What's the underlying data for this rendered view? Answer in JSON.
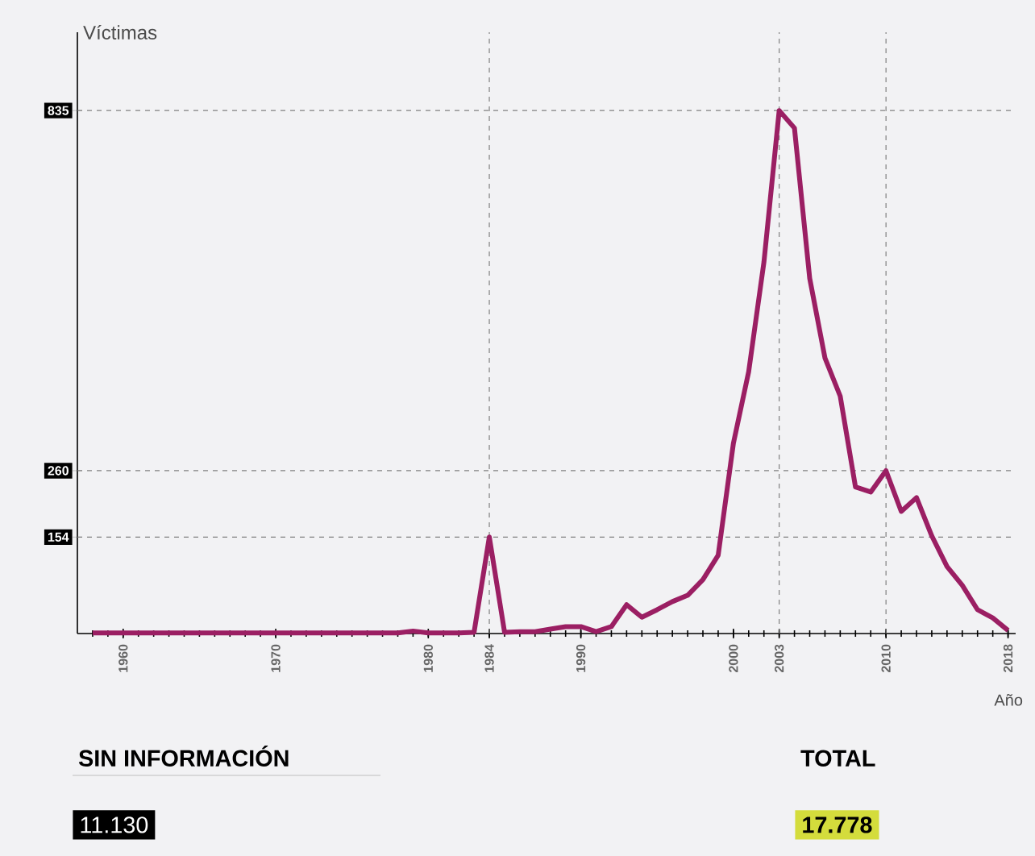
{
  "chart_data": {
    "type": "line",
    "xlabel": "Año",
    "ylabel": "Víctimas",
    "x": [
      1958,
      1959,
      1960,
      1961,
      1962,
      1963,
      1964,
      1965,
      1966,
      1967,
      1968,
      1969,
      1970,
      1971,
      1972,
      1973,
      1974,
      1975,
      1976,
      1977,
      1978,
      1979,
      1980,
      1981,
      1982,
      1983,
      1984,
      1985,
      1986,
      1987,
      1988,
      1989,
      1990,
      1991,
      1992,
      1993,
      1994,
      1995,
      1996,
      1997,
      1998,
      1999,
      2000,
      2001,
      2002,
      2003,
      2004,
      2005,
      2006,
      2007,
      2008,
      2009,
      2010,
      2011,
      2012,
      2013,
      2014,
      2015,
      2016,
      2017,
      2018
    ],
    "series": [
      {
        "color": "#9b1f63",
        "values": [
          1,
          1,
          1,
          1,
          1,
          1,
          1,
          1,
          1,
          1,
          1,
          1,
          1,
          1,
          1,
          1,
          1,
          1,
          1,
          1,
          1,
          4,
          1,
          1,
          1,
          2,
          154,
          2,
          3,
          3,
          7,
          11,
          11,
          3,
          11,
          46,
          26,
          38,
          51,
          61,
          86,
          125,
          304,
          418,
          593,
          835,
          807,
          567,
          440,
          379,
          234,
          226,
          260,
          195,
          217,
          156,
          107,
          77,
          38,
          25,
          5
        ]
      }
    ],
    "xlim": [
      1957,
      2018.5
    ],
    "ylim": [
      0,
      960
    ],
    "xticks": [
      1960,
      1970,
      1980,
      1984,
      1990,
      2000,
      2003,
      2010,
      2018
    ],
    "yticks": [
      154,
      260,
      835
    ],
    "ref_lines": [
      {
        "axis": "y",
        "value": 154
      },
      {
        "axis": "y",
        "value": 260
      },
      {
        "axis": "y",
        "value": 835
      },
      {
        "axis": "x",
        "value": 1984
      },
      {
        "axis": "x",
        "value": 2003
      },
      {
        "axis": "x",
        "value": 2010
      }
    ],
    "line_style": "solid",
    "marker": "none",
    "grid": false,
    "annotations": [
      "SIN INFORMACIÓN",
      "11.130",
      "TOTAL",
      "17.778"
    ]
  }
}
